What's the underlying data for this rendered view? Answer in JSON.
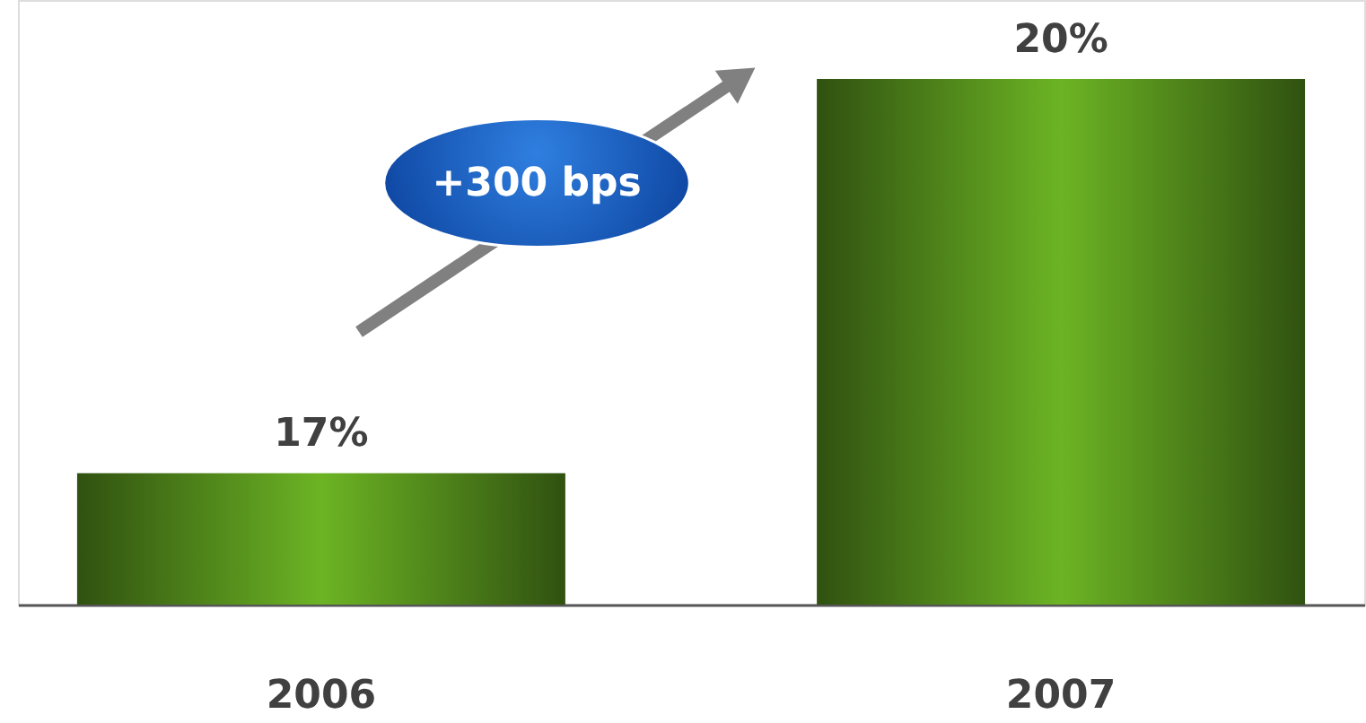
{
  "chart_data": {
    "type": "bar",
    "categories": [
      "2006",
      "2007"
    ],
    "values": [
      17,
      20
    ],
    "value_labels": [
      "17%",
      "20%"
    ],
    "color": "#6cb424",
    "ylim": [
      16,
      20.6
    ],
    "tick_labels": "x",
    "grid": false,
    "annotations": [
      "+300 bps"
    ]
  }
}
